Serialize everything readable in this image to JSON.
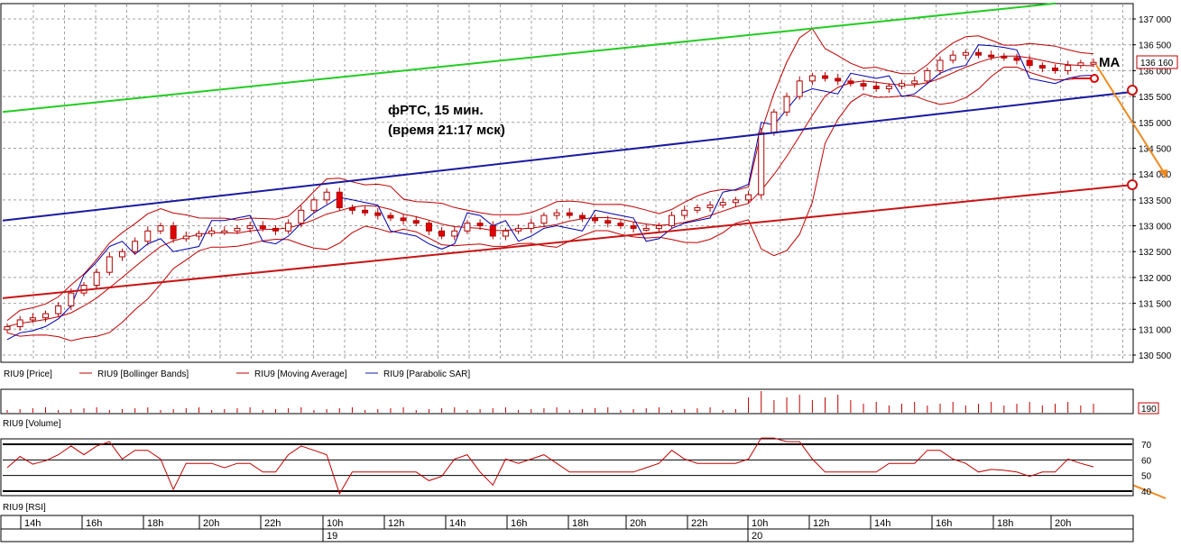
{
  "colors": {
    "price_up": "#ffffff",
    "price_down": "#e00000",
    "candle_outline": "#b00000",
    "bollinger": "#c00000",
    "moving_average": "#c00000",
    "parabolic_sar": "#0000b0",
    "green_channel": "#22cc22",
    "blue_channel": "#1a1aa0",
    "red_channel": "#c81414",
    "arrow": "#f08a20",
    "grid": "#a0a0a0",
    "rsi_band": "#000000",
    "rsi_line": "#c00000",
    "volume": "#c00000"
  },
  "annotations": {
    "title": "фРТС,  15 мин.",
    "subtitle": "(время 21:17 мск)",
    "ma_label": "MA"
  },
  "legend": [
    {
      "label": "RIU9 [Price]",
      "kind": "candle"
    },
    {
      "label": "RIU9 [Bollinger Bands]",
      "kind": "line",
      "color": "#c00000"
    },
    {
      "label": "RIU9 [Moving Average]",
      "kind": "line",
      "color": "#c00000"
    },
    {
      "label": "RIU9 [Parabolic SAR]",
      "kind": "line",
      "color": "#1a1aa0"
    }
  ],
  "volume_panel": {
    "label": "RIU9 [Volume]",
    "value_label": "190"
  },
  "rsi_panel": {
    "label": "RIU9 [RSI]",
    "ticks": [
      "70",
      "60",
      "50",
      "40"
    ]
  },
  "price_badge": "136 160",
  "x_axis": {
    "hours": [
      "14h",
      "16h",
      "18h",
      "20h",
      "22h",
      "10h",
      "12h",
      "14h",
      "16h",
      "18h",
      "20h",
      "22h",
      "10h",
      "12h",
      "14h",
      "16h",
      "18h",
      "20h"
    ],
    "days": [
      "19",
      "20"
    ]
  },
  "chart_data": {
    "type": "candlestick",
    "title": "фРТС,  15 мин.",
    "subtitle": "(время 21:17 мск)",
    "y_axis": {
      "range": [
        130500,
        137000
      ],
      "ticks": [
        "137 000",
        "136 500",
        "136 000",
        "135 500",
        "135 000",
        "134 500",
        "134 000",
        "133 500",
        "133 000",
        "132 500",
        "132 000",
        "131 500",
        "131 000",
        "130 500"
      ]
    },
    "series": [
      {
        "name": "RIU9 [Price]",
        "type": "candlestick",
        "close_path": [
          131050,
          131180,
          131220,
          131300,
          131450,
          131700,
          131850,
          132100,
          132400,
          132500,
          132700,
          132900,
          133000,
          132750,
          132800,
          132850,
          132900,
          132900,
          132950,
          133000,
          132950,
          132900,
          133050,
          133300,
          133500,
          133650,
          133350,
          133300,
          133250,
          133200,
          133150,
          133100,
          133050,
          132900,
          132800,
          132900,
          133050,
          133000,
          132800,
          132900,
          132950,
          133050,
          133200,
          133250,
          133200,
          133150,
          133100,
          133050,
          133000,
          132950,
          132950,
          133000,
          133200,
          133300,
          133350,
          133400,
          133450,
          133500,
          133600,
          134800,
          135200,
          135500,
          135800,
          135900,
          135850,
          135800,
          135750,
          135700,
          135650,
          135700,
          135750,
          135800,
          136000,
          136200,
          136300,
          136350,
          136300,
          136280,
          136250,
          136200,
          136100,
          136050,
          136000,
          136100,
          136150,
          136160
        ]
      }
    ],
    "indicators": [
      "Bollinger Bands",
      "Moving Average",
      "Parabolic SAR",
      "Volume",
      "RSI"
    ],
    "trend_lines": [
      {
        "name": "green",
        "from": [
          0,
          135200
        ],
        "to": [
          1167,
          137300
        ]
      },
      {
        "name": "blue",
        "from": [
          0,
          133100
        ],
        "to": [
          1257,
          135600
        ]
      },
      {
        "name": "red",
        "from": [
          0,
          131600
        ],
        "to": [
          1257,
          133800
        ]
      }
    ],
    "rsi_levels": [
      70,
      60,
      50,
      40
    ]
  }
}
